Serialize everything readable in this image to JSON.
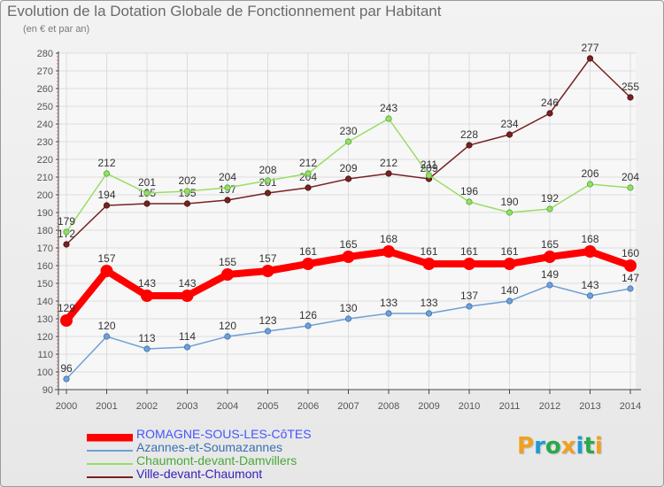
{
  "chart_data": {
    "type": "line",
    "title": "Evolution de la Dotation Globale de Fonctionnement par Habitant",
    "subtitle": "(en € et par an)",
    "categories": [
      "2000",
      "2001",
      "2002",
      "2003",
      "2004",
      "2005",
      "2006",
      "2007",
      "2008",
      "2009",
      "2010",
      "2011",
      "2012",
      "2013",
      "2014"
    ],
    "ylim": [
      90,
      280
    ],
    "yticks": [
      90,
      100,
      110,
      120,
      130,
      140,
      150,
      160,
      170,
      180,
      190,
      200,
      210,
      220,
      230,
      240,
      250,
      260,
      270,
      280
    ],
    "grid": true,
    "legend_position": "bottom-left",
    "series": [
      {
        "name": "ROMAGNE-SOUS-LES-CôTES",
        "color": "#ff0000",
        "emphasis": true,
        "values": [
          129,
          157,
          143,
          143,
          155,
          157,
          161,
          165,
          168,
          161,
          161,
          161,
          165,
          168,
          160
        ]
      },
      {
        "name": "Azannes-et-Soumazannes",
        "color": "#6fa0d6",
        "emphasis": false,
        "values": [
          96,
          120,
          113,
          114,
          120,
          123,
          126,
          130,
          133,
          133,
          137,
          140,
          149,
          143,
          147
        ]
      },
      {
        "name": "Chaumont-devant-Damvillers",
        "color": "#99dd66",
        "emphasis": false,
        "values": [
          179,
          212,
          201,
          202,
          204,
          208,
          212,
          230,
          243,
          211,
          196,
          190,
          192,
          206,
          204
        ]
      },
      {
        "name": "Ville-devant-Chaumont",
        "color": "#772222",
        "emphasis": false,
        "values": [
          172,
          194,
          195,
          195,
          197,
          201,
          204,
          209,
          212,
          209,
          228,
          234,
          246,
          277,
          255
        ]
      }
    ]
  },
  "legend_colors": [
    "#4455ff",
    "#3b6fb0",
    "#4aa83a",
    "#3322bb"
  ],
  "logo": {
    "letters": [
      "P",
      "r",
      "o",
      "x",
      "i",
      "t",
      "i"
    ],
    "colors": [
      "#f0a020",
      "#1f9ad6",
      "#2aa84a",
      "#f0a020",
      "#1f9ad6",
      "#2aa84a",
      "#f0a020"
    ]
  }
}
